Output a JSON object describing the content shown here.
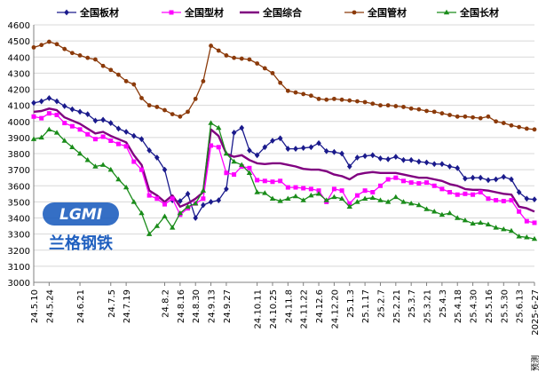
{
  "chart_data": {
    "type": "line",
    "ylim": [
      3000,
      4600
    ],
    "yticks": [
      3000,
      3100,
      3200,
      3300,
      3400,
      3500,
      3600,
      3700,
      3800,
      3900,
      4000,
      4100,
      4200,
      4300,
      4400,
      4500,
      4600
    ],
    "xticks": [
      {
        "i": 0,
        "label": "24.5.10"
      },
      {
        "i": 2,
        "label": "24.5.24"
      },
      {
        "i": 6,
        "label": "24.6.21"
      },
      {
        "i": 10,
        "label": "24.7.5"
      },
      {
        "i": 12,
        "label": "24.7.19"
      },
      {
        "i": 17,
        "label": "24.8.2"
      },
      {
        "i": 19,
        "label": "24.8.16"
      },
      {
        "i": 21,
        "label": "24.8.30"
      },
      {
        "i": 23,
        "label": "24.9.13"
      },
      {
        "i": 25,
        "label": "24.9.27"
      },
      {
        "i": 29,
        "label": "24.10.11"
      },
      {
        "i": 31,
        "label": "24.10.25"
      },
      {
        "i": 33,
        "label": "24.11.8"
      },
      {
        "i": 35,
        "label": "24.11.22"
      },
      {
        "i": 37,
        "label": "24.12.6"
      },
      {
        "i": 39,
        "label": "24.12.20"
      },
      {
        "i": 41,
        "label": "25.1.3"
      },
      {
        "i": 43,
        "label": "25.1.17"
      },
      {
        "i": 45,
        "label": "25.2.7"
      },
      {
        "i": 47,
        "label": "25.2.21"
      },
      {
        "i": 49,
        "label": "25.3.7"
      },
      {
        "i": 51,
        "label": "25.3.21"
      },
      {
        "i": 53,
        "label": "25.4.3"
      },
      {
        "i": 55,
        "label": "25.4.18"
      },
      {
        "i": 57,
        "label": "25.4.30"
      },
      {
        "i": 59,
        "label": "25.5.16"
      },
      {
        "i": 61,
        "label": "25.5.30"
      },
      {
        "i": 63,
        "label": "25.6.13"
      },
      {
        "i": 65,
        "label": "2025-6-27"
      }
    ],
    "series": [
      {
        "name": "全国板材",
        "color": "#1a1a8c",
        "marker": "diamond",
        "values": [
          4115,
          4125,
          4145,
          4125,
          4095,
          4075,
          4060,
          4045,
          4005,
          4010,
          3990,
          3955,
          3935,
          3910,
          3890,
          3820,
          3775,
          3700,
          3510,
          3505,
          3550,
          3400,
          3480,
          3500,
          3510,
          3580,
          3930,
          3960,
          3820,
          3790,
          3840,
          3880,
          3895,
          3830,
          3830,
          3835,
          3840,
          3865,
          3815,
          3810,
          3800,
          3720,
          3775,
          3785,
          3790,
          3770,
          3765,
          3780,
          3760,
          3760,
          3750,
          3745,
          3735,
          3735,
          3720,
          3710,
          3645,
          3650,
          3650,
          3635,
          3640,
          3655,
          3640,
          3560,
          3520,
          3515
        ]
      },
      {
        "name": "全国型材",
        "color": "#ff00ff",
        "marker": "square",
        "values": [
          4030,
          4020,
          4050,
          4040,
          3990,
          3970,
          3950,
          3920,
          3890,
          3905,
          3880,
          3860,
          3845,
          3750,
          3700,
          3540,
          3520,
          3485,
          3520,
          3420,
          3460,
          3490,
          3520,
          3850,
          3840,
          3680,
          3670,
          3720,
          3710,
          3635,
          3630,
          3625,
          3630,
          3590,
          3590,
          3585,
          3580,
          3570,
          3500,
          3580,
          3570,
          3490,
          3540,
          3570,
          3560,
          3600,
          3640,
          3650,
          3630,
          3620,
          3615,
          3620,
          3600,
          3580,
          3560,
          3545,
          3550,
          3545,
          3560,
          3520,
          3510,
          3505,
          3510,
          3440,
          3380,
          3370
        ]
      },
      {
        "name": "全国综合",
        "color": "#800080",
        "marker": "none",
        "values": [
          4060,
          4065,
          4080,
          4070,
          4025,
          4005,
          3985,
          3955,
          3925,
          3935,
          3910,
          3890,
          3870,
          3790,
          3730,
          3570,
          3540,
          3500,
          3540,
          3470,
          3490,
          3520,
          3560,
          3950,
          3910,
          3800,
          3780,
          3790,
          3760,
          3740,
          3735,
          3740,
          3740,
          3730,
          3720,
          3705,
          3700,
          3700,
          3690,
          3670,
          3660,
          3640,
          3670,
          3680,
          3685,
          3680,
          3680,
          3680,
          3670,
          3660,
          3650,
          3650,
          3640,
          3630,
          3610,
          3600,
          3580,
          3575,
          3575,
          3570,
          3560,
          3550,
          3545,
          3470,
          3460,
          3440
        ]
      },
      {
        "name": "全国管材",
        "color": "#8b3a0a",
        "marker": "circle",
        "values": [
          4460,
          4475,
          4495,
          4480,
          4450,
          4425,
          4410,
          4395,
          4385,
          4345,
          4320,
          4290,
          4250,
          4230,
          4145,
          4100,
          4090,
          4070,
          4045,
          4030,
          4060,
          4140,
          4250,
          4470,
          4440,
          4410,
          4395,
          4390,
          4385,
          4360,
          4330,
          4300,
          4240,
          4190,
          4180,
          4170,
          4160,
          4140,
          4135,
          4140,
          4135,
          4130,
          4125,
          4120,
          4110,
          4100,
          4100,
          4095,
          4090,
          4080,
          4075,
          4065,
          4060,
          4050,
          4040,
          4030,
          4030,
          4025,
          4020,
          4030,
          4000,
          3990,
          3975,
          3965,
          3955,
          3950
        ]
      },
      {
        "name": "全国长材",
        "color": "#1a8c1a",
        "marker": "triangle",
        "values": [
          3890,
          3900,
          3950,
          3930,
          3880,
          3840,
          3800,
          3760,
          3720,
          3730,
          3700,
          3640,
          3590,
          3500,
          3430,
          3300,
          3350,
          3410,
          3340,
          3430,
          3470,
          3490,
          3570,
          3990,
          3960,
          3800,
          3750,
          3730,
          3680,
          3560,
          3555,
          3520,
          3505,
          3520,
          3535,
          3510,
          3540,
          3550,
          3510,
          3530,
          3520,
          3470,
          3500,
          3520,
          3525,
          3510,
          3500,
          3530,
          3500,
          3490,
          3480,
          3455,
          3440,
          3420,
          3430,
          3400,
          3385,
          3365,
          3370,
          3360,
          3340,
          3330,
          3320,
          3285,
          3280,
          3270
        ]
      }
    ]
  },
  "note_label": "预测",
  "watermark": {
    "logo_text": "LGMI",
    "caption": "兰格钢铁"
  }
}
